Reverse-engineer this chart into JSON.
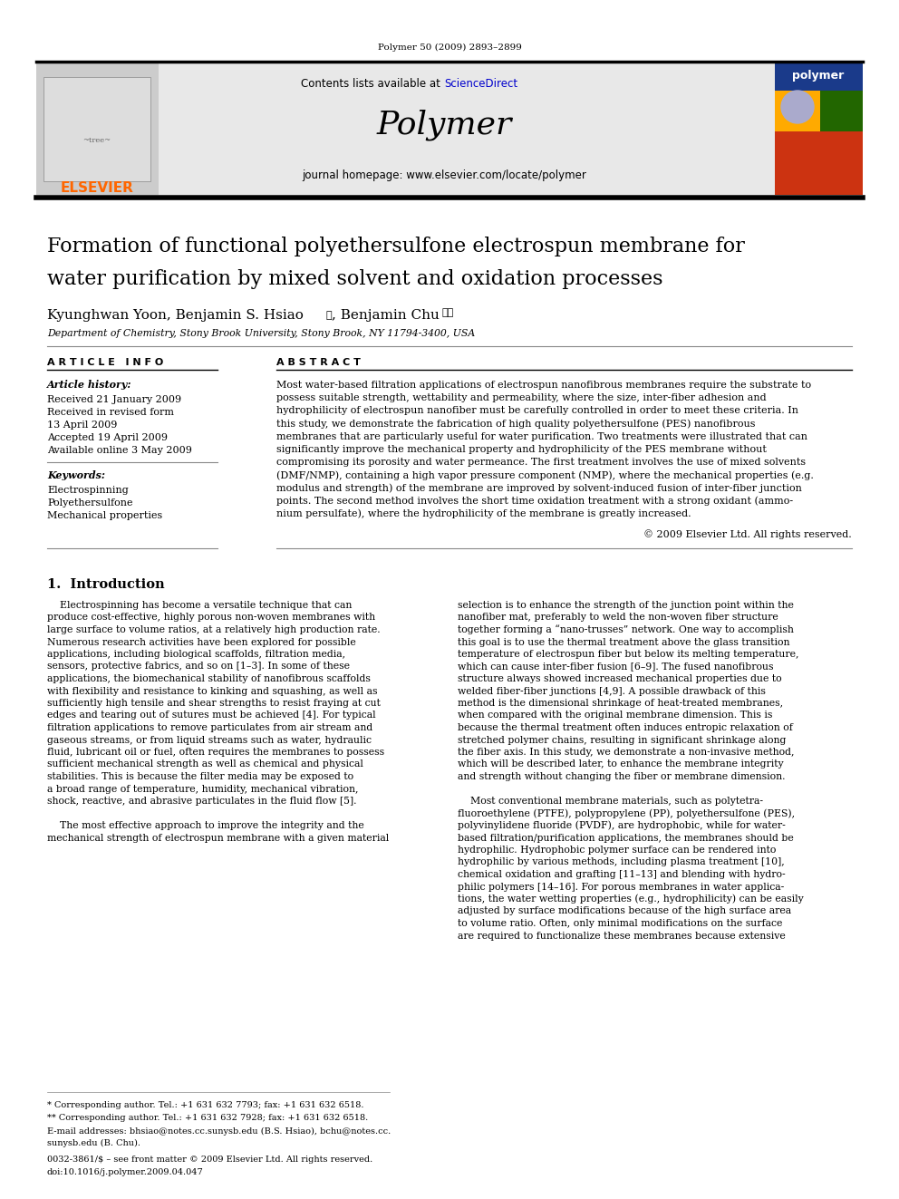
{
  "page_bg": "#ffffff",
  "top_journal_ref": "Polymer 50 (2009) 2893–2899",
  "header_bg": "#e8e8e8",
  "header_text_contents": "Contents lists available at ScienceDirect",
  "header_sciencedirect_color": "#0000cc",
  "header_journal_name": "Polymer",
  "header_homepage": "journal homepage: www.elsevier.com/locate/polymer",
  "elsevier_text": "ELSEVIER",
  "elsevier_color": "#ff6600",
  "paper_title_line1": "Formation of functional polyethersulfone electrospun membrane for",
  "paper_title_line2": "water purification by mixed solvent and oxidation processes",
  "authors": "Kyunghwan Yoon, Benjamin S. Hsiao*, Benjamin Chu**",
  "affiliation": "Department of Chemistry, Stony Brook University, Stony Brook, NY 11794-3400, USA",
  "article_info_header": "A R T I C L E   I N F O",
  "abstract_header": "A B S T R A C T",
  "article_history_label": "Article history:",
  "received1": "Received 21 January 2009",
  "received2": "Received in revised form",
  "received2b": "13 April 2009",
  "accepted": "Accepted 19 April 2009",
  "available": "Available online 3 May 2009",
  "keywords_label": "Keywords:",
  "keyword1": "Electrospinning",
  "keyword2": "Polyethersulfone",
  "keyword3": "Mechanical properties",
  "copyright": "© 2009 Elsevier Ltd. All rights reserved.",
  "intro_header": "1.  Introduction",
  "abstract_lines": [
    "Most water-based filtration applications of electrospun nanofibrous membranes require the substrate to",
    "possess suitable strength, wettability and permeability, where the size, inter-fiber adhesion and",
    "hydrophilicity of electrospun nanofiber must be carefully controlled in order to meet these criteria. In",
    "this study, we demonstrate the fabrication of high quality polyethersulfone (PES) nanofibrous",
    "membranes that are particularly useful for water purification. Two treatments were illustrated that can",
    "significantly improve the mechanical property and hydrophilicity of the PES membrane without",
    "compromising its porosity and water permeance. The first treatment involves the use of mixed solvents",
    "(DMF/NMP), containing a high vapor pressure component (NMP), where the mechanical properties (e.g.",
    "modulus and strength) of the membrane are improved by solvent-induced fusion of inter-fiber junction",
    "points. The second method involves the short time oxidation treatment with a strong oxidant (ammo-",
    "nium persulfate), where the hydrophilicity of the membrane is greatly increased."
  ],
  "col1_lines": [
    "    Electrospinning has become a versatile technique that can",
    "produce cost-effective, highly porous non-woven membranes with",
    "large surface to volume ratios, at a relatively high production rate.",
    "Numerous research activities have been explored for possible",
    "applications, including biological scaffolds, filtration media,",
    "sensors, protective fabrics, and so on [1–3]. In some of these",
    "applications, the biomechanical stability of nanofibrous scaffolds",
    "with flexibility and resistance to kinking and squashing, as well as",
    "sufficiently high tensile and shear strengths to resist fraying at cut",
    "edges and tearing out of sutures must be achieved [4]. For typical",
    "filtration applications to remove particulates from air stream and",
    "gaseous streams, or from liquid streams such as water, hydraulic",
    "fluid, lubricant oil or fuel, often requires the membranes to possess",
    "sufficient mechanical strength as well as chemical and physical",
    "stabilities. This is because the filter media may be exposed to",
    "a broad range of temperature, humidity, mechanical vibration,",
    "shock, reactive, and abrasive particulates in the fluid flow [5].",
    "",
    "    The most effective approach to improve the integrity and the",
    "mechanical strength of electrospun membrane with a given material"
  ],
  "col2_lines": [
    "selection is to enhance the strength of the junction point within the",
    "nanofiber mat, preferably to weld the non-woven fiber structure",
    "together forming a “nano-trusses” network. One way to accomplish",
    "this goal is to use the thermal treatment above the glass transition",
    "temperature of electrospun fiber but below its melting temperature,",
    "which can cause inter-fiber fusion [6–9]. The fused nanofibrous",
    "structure always showed increased mechanical properties due to",
    "welded fiber-fiber junctions [4,9]. A possible drawback of this",
    "method is the dimensional shrinkage of heat-treated membranes,",
    "when compared with the original membrane dimension. This is",
    "because the thermal treatment often induces entropic relaxation of",
    "stretched polymer chains, resulting in significant shrinkage along",
    "the fiber axis. In this study, we demonstrate a non-invasive method,",
    "which will be described later, to enhance the membrane integrity",
    "and strength without changing the fiber or membrane dimension.",
    "",
    "    Most conventional membrane materials, such as polytetra-",
    "fluoroethylene (PTFE), polypropylene (PP), polyethersulfone (PES),",
    "polyvinylidene fluoride (PVDF), are hydrophobic, while for water-",
    "based filtration/purification applications, the membranes should be",
    "hydrophilic. Hydrophobic polymer surface can be rendered into",
    "hydrophilic by various methods, including plasma treatment [10],",
    "chemical oxidation and grafting [11–13] and blending with hydro-",
    "philic polymers [14–16]. For porous membranes in water applica-",
    "tions, the water wetting properties (e.g., hydrophilicity) can be easily",
    "adjusted by surface modifications because of the high surface area",
    "to volume ratio. Often, only minimal modifications on the surface",
    "are required to functionalize these membranes because extensive"
  ],
  "footer_line1": "* Corresponding author. Tel.: +1 631 632 7793; fax: +1 631 632 6518.",
  "footer_line2": "** Corresponding author. Tel.: +1 631 632 7928; fax: +1 631 632 6518.",
  "footer_line3": "E-mail addresses: bhsiao@notes.cc.sunysb.edu (B.S. Hsiao), bchu@notes.cc.",
  "footer_line3b": "sunysb.edu (B. Chu).",
  "footer_issn": "0032-3861/$ – see front matter © 2009 Elsevier Ltd. All rights reserved.",
  "footer_doi": "doi:10.1016/j.polymer.2009.04.047"
}
